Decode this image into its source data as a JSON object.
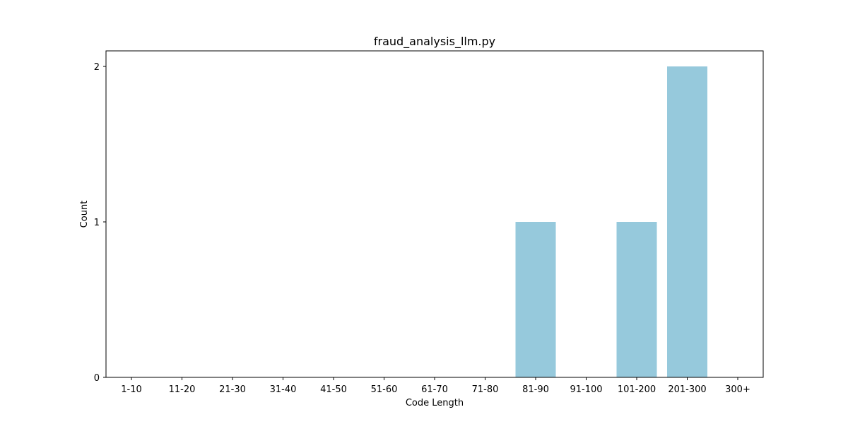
{
  "chart_data": {
    "type": "bar",
    "title": "fraud_analysis_llm.py",
    "xlabel": "Code Length",
    "ylabel": "Count",
    "categories": [
      "1-10",
      "11-20",
      "21-30",
      "31-40",
      "41-50",
      "51-60",
      "61-70",
      "71-80",
      "81-90",
      "91-100",
      "101-200",
      "201-300",
      "300+"
    ],
    "values": [
      0,
      0,
      0,
      0,
      0,
      0,
      0,
      0,
      1,
      0,
      1,
      2,
      0
    ],
    "ylim": [
      0,
      2.1
    ],
    "yticks": [
      "0",
      "1",
      "2"
    ],
    "grid": false,
    "legend": "none",
    "bar_color": "#96c9dc"
  }
}
